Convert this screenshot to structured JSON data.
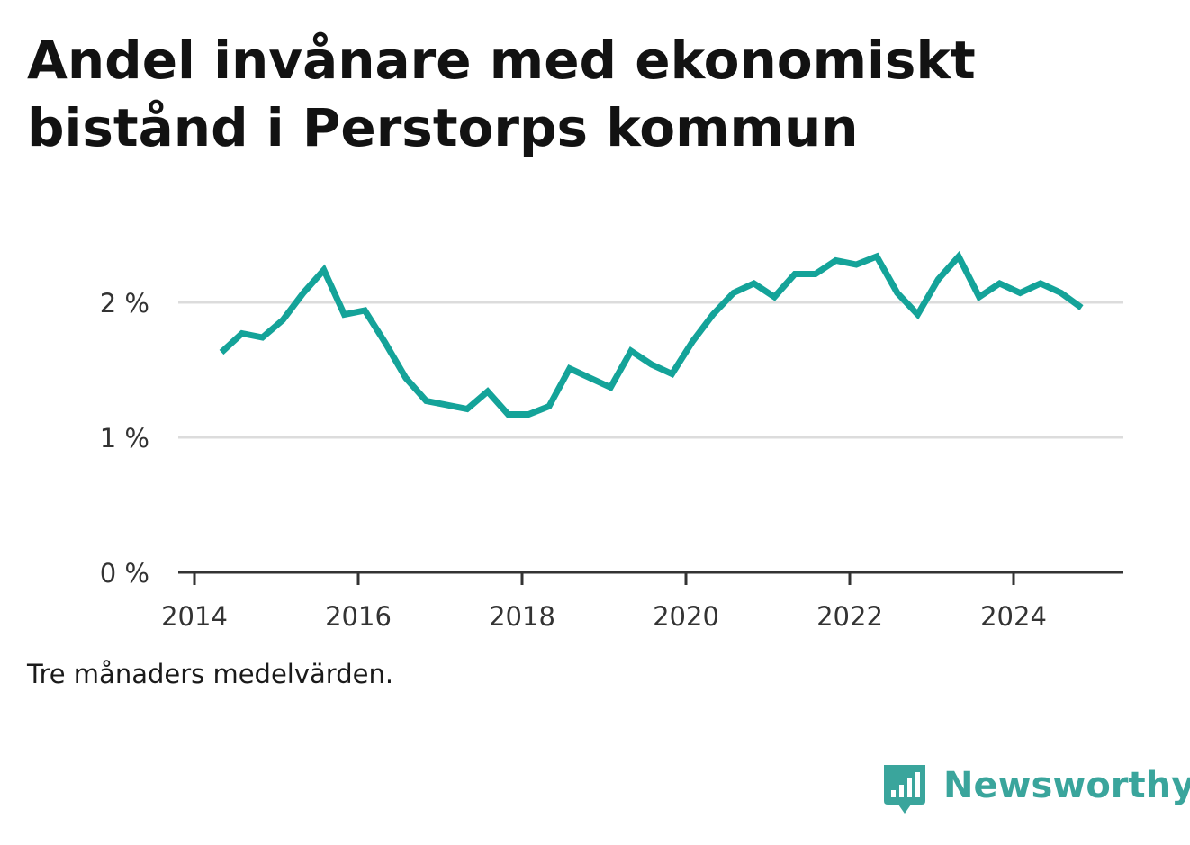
{
  "title": "Andel invånare med ekonomiskt bistånd i Perstorps kommun",
  "note": "Tre månaders medelvärden.",
  "brand": {
    "name": "Newsworthy",
    "icon": "bar-chart-speech-bubble-icon",
    "color": "#3aa59c"
  },
  "chart_data": {
    "type": "line",
    "title": "Andel invånare med ekonomiskt bistånd i Perstorps kommun",
    "xlabel": "",
    "ylabel": "",
    "xlim": [
      2013.8,
      2025.4
    ],
    "ylim": [
      0,
      2.6
    ],
    "y_ticks": [
      0,
      1,
      2
    ],
    "y_tick_labels": [
      "0 %",
      "1 %",
      "2 %"
    ],
    "x_ticks": [
      2014,
      2016,
      2018,
      2020,
      2022,
      2024
    ],
    "x_tick_labels": [
      "2014",
      "2016",
      "2018",
      "2020",
      "2022",
      "2024"
    ],
    "grid": true,
    "line_color": "#14a399",
    "series": [
      {
        "x": [
          2014.33,
          2014.58,
          2014.83,
          2015.08,
          2015.33,
          2015.58,
          2015.83,
          2016.08,
          2016.33,
          2016.58,
          2016.83,
          2017.08,
          2017.33,
          2017.58,
          2017.83,
          2018.08,
          2018.33,
          2018.58,
          2018.83,
          2019.08,
          2019.33,
          2019.58,
          2019.83,
          2020.08,
          2020.33,
          2020.58,
          2020.83,
          2021.08,
          2021.33,
          2021.58,
          2021.83,
          2022.08,
          2022.33,
          2022.58,
          2022.83,
          2023.08,
          2023.33,
          2023.58,
          2023.83,
          2024.08,
          2024.33,
          2024.58,
          2024.83
        ],
        "values": [
          1.63,
          1.77,
          1.74,
          1.87,
          2.07,
          2.24,
          1.91,
          1.94,
          1.7,
          1.44,
          1.27,
          1.24,
          1.21,
          1.34,
          1.17,
          1.17,
          1.23,
          1.51,
          1.44,
          1.37,
          1.64,
          1.54,
          1.47,
          1.71,
          1.91,
          2.07,
          2.14,
          2.04,
          2.21,
          2.21,
          2.31,
          2.28,
          2.34,
          2.07,
          1.91,
          2.17,
          2.34,
          2.04,
          2.14,
          2.07,
          2.14,
          2.07,
          1.96
        ]
      }
    ]
  }
}
